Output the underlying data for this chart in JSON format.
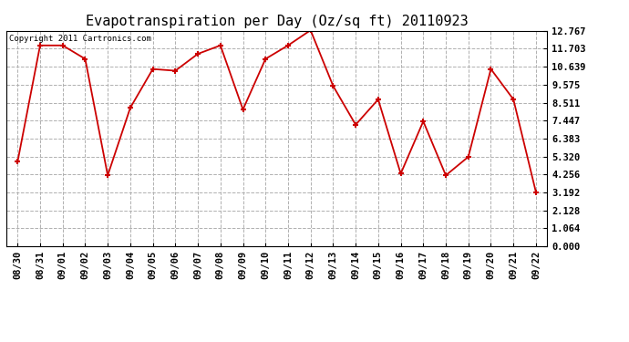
{
  "title": "Evapotranspiration per Day (Oz/sq ft) 20110923",
  "copyright": "Copyright 2011 Cartronics.com",
  "x_labels": [
    "08/30",
    "08/31",
    "09/01",
    "09/02",
    "09/03",
    "09/04",
    "09/05",
    "09/06",
    "09/07",
    "09/08",
    "09/09",
    "09/10",
    "09/11",
    "09/12",
    "09/13",
    "09/14",
    "09/15",
    "09/16",
    "09/17",
    "09/18",
    "09/19",
    "09/20",
    "09/21",
    "09/22"
  ],
  "y_values": [
    5.0,
    11.9,
    11.9,
    11.1,
    4.2,
    8.2,
    10.5,
    10.4,
    11.4,
    11.9,
    8.1,
    11.1,
    11.9,
    12.8,
    9.5,
    7.2,
    8.7,
    4.3,
    7.4,
    4.2,
    5.3,
    10.5,
    8.7,
    3.2
  ],
  "yticks": [
    0.0,
    1.064,
    2.128,
    3.192,
    4.256,
    5.32,
    6.383,
    7.447,
    8.511,
    9.575,
    10.639,
    11.703,
    12.767
  ],
  "ytick_labels": [
    "0.000",
    "1.064",
    "2.128",
    "3.192",
    "4.256",
    "5.320",
    "6.383",
    "7.447",
    "8.511",
    "9.575",
    "10.639",
    "11.703",
    "12.767"
  ],
  "ylim": [
    0.0,
    12.767
  ],
  "line_color": "#cc0000",
  "marker_color": "#cc0000",
  "bg_color": "#ffffff",
  "grid_color": "#b0b0b0",
  "title_fontsize": 11,
  "copyright_fontsize": 6.5,
  "tick_fontsize": 7.5
}
